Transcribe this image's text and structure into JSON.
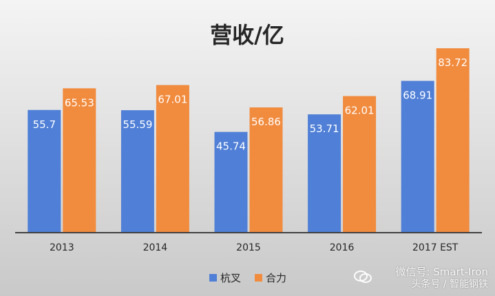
{
  "chart_data": {
    "type": "bar",
    "title": "营收/亿",
    "categories": [
      "2013",
      "2014",
      "2015",
      "2016",
      "2017 EST"
    ],
    "series": [
      {
        "name": "杭叉",
        "color": "#4F7FD6",
        "values": [
          55.7,
          55.59,
          45.74,
          53.71,
          68.91
        ],
        "labels": [
          "55.7",
          "55.59",
          "45.74",
          "53.71",
          "68.91"
        ]
      },
      {
        "name": "合力",
        "color": "#F18B3E",
        "values": [
          65.53,
          67.01,
          56.86,
          62.01,
          83.72
        ],
        "labels": [
          "65.53",
          "67.01",
          "56.86",
          "62.01",
          "83.72"
        ]
      }
    ],
    "ylim": [
      0,
      90
    ],
    "grid": false,
    "legend": "bottom"
  },
  "watermark": {
    "line1": "微信号: Smart-Iron",
    "line2": "头条号 / 智能钢铁",
    "icon": "wechat-icon"
  },
  "colors": {
    "background_top": "#F4F4F4",
    "background_bottom": "#C9C9C9",
    "axis": "#404040",
    "text": "#262626",
    "label_text": "#FFFFFF"
  }
}
